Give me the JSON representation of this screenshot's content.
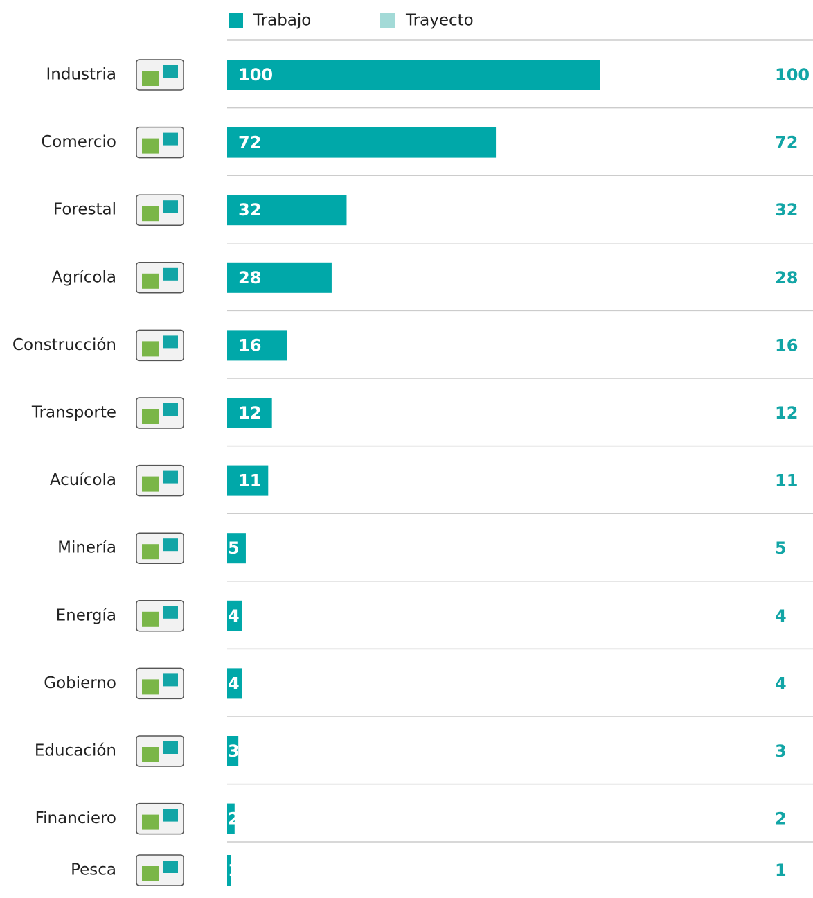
{
  "chart_data": {
    "type": "hbar",
    "categories": [
      "Industria",
      "Comercio",
      "Forestal",
      "Agrícola",
      "Construcción",
      "Transporte",
      "Acuícola",
      "Minería",
      "Energía",
      "Gobierno",
      "Educación",
      "Financiero",
      "Pesca"
    ],
    "series": [
      {
        "name": "Trabajo",
        "color": "#00a8a9",
        "values": [
          100,
          72,
          32,
          28,
          16,
          12,
          11,
          5,
          4,
          4,
          3,
          2,
          1
        ]
      },
      {
        "name": "Trayecto",
        "color": "#a3dad7",
        "values": [
          0,
          0,
          0,
          0,
          0,
          0,
          0,
          0,
          0,
          0,
          0,
          0,
          0
        ]
      }
    ],
    "totals": [
      100,
      72,
      32,
      28,
      16,
      12,
      11,
      5,
      4,
      4,
      3,
      2,
      1
    ],
    "xlim": [
      0,
      100
    ]
  }
}
